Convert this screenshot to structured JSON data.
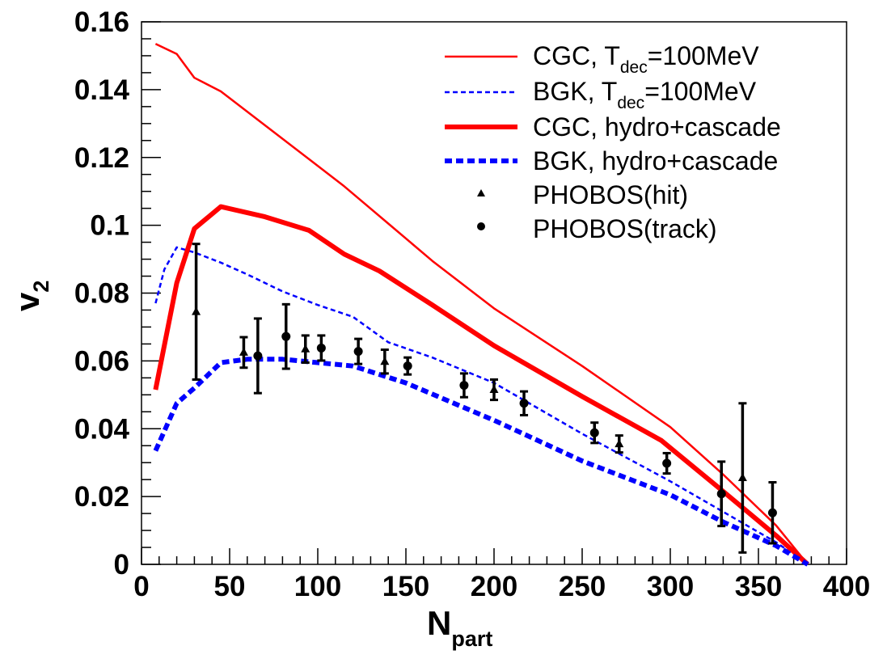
{
  "chart_data": {
    "type": "line",
    "title": "",
    "xlabel": "N",
    "xlabel_sub": "part",
    "ylabel": "v",
    "ylabel_sub": "2",
    "xlim": [
      0,
      400
    ],
    "ylim": [
      0,
      0.16
    ],
    "x_ticks": [
      0,
      50,
      100,
      150,
      200,
      250,
      300,
      350,
      400
    ],
    "x_tick_labels": [
      "0",
      "50",
      "100",
      "150",
      "200",
      "250",
      "300",
      "350",
      "400"
    ],
    "y_ticks": [
      0,
      0.02,
      0.04,
      0.06,
      0.08,
      0.1,
      0.12,
      0.14,
      0.16
    ],
    "y_tick_labels": [
      "0",
      "0.02",
      "0.04",
      "0.06",
      "0.08",
      "0.1",
      "0.12",
      "0.14",
      "0.16"
    ],
    "grid": false,
    "legend_position": "top-right",
    "series": [
      {
        "name": "CGC, T_dec=100MeV",
        "legend_main": "CGC, T",
        "legend_sub": "dec",
        "legend_tail": "=100MeV",
        "style": "solid-thin",
        "color": "#ff0000",
        "x": [
          8,
          20,
          30,
          45,
          60,
          75,
          95,
          115,
          140,
          165,
          200,
          250,
          300,
          330,
          360,
          378
        ],
        "y": [
          0.1535,
          0.1505,
          0.1435,
          0.1395,
          0.1335,
          0.1275,
          0.1195,
          0.1115,
          0.1005,
          0.0895,
          0.0755,
          0.0585,
          0.0405,
          0.0265,
          0.0115,
          0.0
        ]
      },
      {
        "name": "BGK, T_dec=100MeV",
        "legend_main": "BGK, T",
        "legend_sub": "dec",
        "legend_tail": "=100MeV",
        "style": "dashed-thin",
        "color": "#0000ff",
        "x": [
          8,
          13,
          20,
          30,
          45,
          60,
          80,
          100,
          120,
          140,
          165,
          200,
          250,
          300,
          330,
          360,
          378
        ],
        "y": [
          0.077,
          0.087,
          0.0935,
          0.092,
          0.089,
          0.0855,
          0.0805,
          0.0765,
          0.073,
          0.0655,
          0.061,
          0.0535,
          0.0385,
          0.0245,
          0.0155,
          0.0065,
          0.0
        ]
      },
      {
        "name": "CGC, hydro+cascade",
        "legend_main": "CGC, hydro+cascade",
        "style": "solid-thick",
        "color": "#ff0000",
        "x": [
          8,
          20,
          30,
          45,
          70,
          95,
          115,
          135,
          165,
          200,
          250,
          295,
          330,
          360,
          378
        ],
        "y": [
          0.0515,
          0.083,
          0.099,
          0.1055,
          0.1025,
          0.0985,
          0.0915,
          0.0865,
          0.0765,
          0.0645,
          0.0495,
          0.0365,
          0.0215,
          0.0085,
          0.0
        ]
      },
      {
        "name": "BGK, hydro+cascade",
        "legend_main": "BGK, hydro+cascade",
        "style": "dashed-thick",
        "color": "#0000ff",
        "x": [
          8,
          20,
          30,
          45,
          60,
          80,
          100,
          120,
          150,
          200,
          250,
          300,
          330,
          360,
          378
        ],
        "y": [
          0.0335,
          0.0475,
          0.052,
          0.0595,
          0.0605,
          0.0605,
          0.0595,
          0.0585,
          0.0535,
          0.0425,
          0.0305,
          0.0205,
          0.0125,
          0.0055,
          0.0
        ]
      },
      {
        "name": "PHOBOS(hit)",
        "legend_main": "PHOBOS(hit)",
        "style": "marker-triangle",
        "color": "#000000",
        "points": [
          {
            "x": 31,
            "y": 0.0745,
            "err": 0.02
          },
          {
            "x": 58,
            "y": 0.0625,
            "err": 0.0045
          },
          {
            "x": 93,
            "y": 0.0635,
            "err": 0.004
          },
          {
            "x": 138,
            "y": 0.0598,
            "err": 0.0035
          },
          {
            "x": 200,
            "y": 0.0515,
            "err": 0.003
          },
          {
            "x": 271,
            "y": 0.0355,
            "err": 0.0025
          },
          {
            "x": 341,
            "y": 0.0255,
            "err": 0.022
          }
        ]
      },
      {
        "name": "PHOBOS(track)",
        "legend_main": "PHOBOS(track)",
        "style": "marker-circle",
        "color": "#000000",
        "points": [
          {
            "x": 66,
            "y": 0.0615,
            "err": 0.011
          },
          {
            "x": 82,
            "y": 0.0672,
            "err": 0.0095
          },
          {
            "x": 102,
            "y": 0.0638,
            "err": 0.0037
          },
          {
            "x": 123,
            "y": 0.0628,
            "err": 0.0037
          },
          {
            "x": 151,
            "y": 0.0585,
            "err": 0.0025
          },
          {
            "x": 183,
            "y": 0.0528,
            "err": 0.0035
          },
          {
            "x": 217,
            "y": 0.0475,
            "err": 0.0035
          },
          {
            "x": 257,
            "y": 0.0388,
            "err": 0.003
          },
          {
            "x": 298,
            "y": 0.0298,
            "err": 0.003
          },
          {
            "x": 329,
            "y": 0.0208,
            "err": 0.0095
          },
          {
            "x": 358,
            "y": 0.0152,
            "err": 0.009
          }
        ]
      }
    ]
  }
}
